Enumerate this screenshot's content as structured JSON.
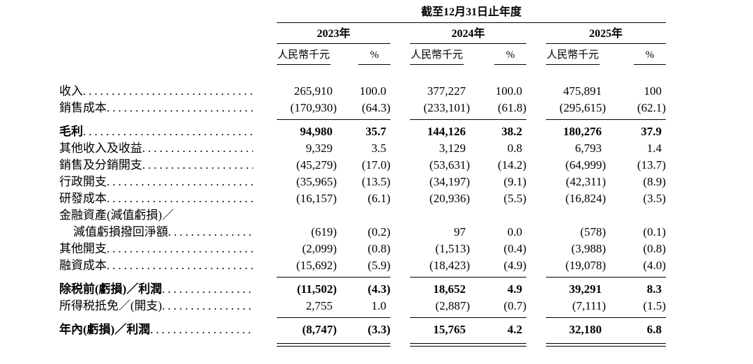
{
  "header": {
    "period": "截至12月31日止年度",
    "years": [
      "2023年",
      "2024年",
      "2025年"
    ],
    "amount_unit": "人民幣千元",
    "pct_symbol": "%"
  },
  "rows": [
    {
      "label": "收入",
      "dots": true,
      "bold": false,
      "values": [
        "265,910",
        "100.0",
        "377,227",
        "100.0",
        "475,891",
        "100"
      ]
    },
    {
      "label": "銷售成本",
      "dots": true,
      "bold": false,
      "values": [
        "(170,930)",
        "(64.3)",
        "(233,101)",
        "(61.8)",
        "(295,615)",
        "(62.1)"
      ]
    },
    {
      "type": "rule"
    },
    {
      "label": "毛利",
      "dots": true,
      "bold": true,
      "values": [
        "94,980",
        "35.7",
        "144,126",
        "38.2",
        "180,276",
        "37.9"
      ]
    },
    {
      "label": "其他收入及收益",
      "dots": true,
      "bold": false,
      "values": [
        "9,329",
        "3.5",
        "3,129",
        "0.8",
        "6,793",
        "1.4"
      ]
    },
    {
      "label": "銷售及分銷開支",
      "dots": true,
      "bold": false,
      "values": [
        "(45,279)",
        "(17.0)",
        "(53,631)",
        "(14.2)",
        "(64,999)",
        "(13.7)"
      ]
    },
    {
      "label": "行政開支",
      "dots": true,
      "bold": false,
      "values": [
        "(35,965)",
        "(13.5)",
        "(34,197)",
        "(9.1)",
        "(42,311)",
        "(8.9)"
      ]
    },
    {
      "label": "研發成本",
      "dots": true,
      "bold": false,
      "values": [
        "(16,157)",
        "(6.1)",
        "(20,936)",
        "(5.5)",
        "(16,824)",
        "(3.5)"
      ]
    },
    {
      "label": "金融資產(減值虧損)／",
      "dots": false,
      "bold": false
    },
    {
      "label": "減值虧損撥回淨額",
      "dots": true,
      "bold": false,
      "indent": true,
      "values": [
        "(619)",
        "(0.2)",
        "97",
        "0.0",
        "(578)",
        "(0.1)"
      ]
    },
    {
      "label": "其他開支",
      "dots": true,
      "bold": false,
      "values": [
        "(2,099)",
        "(0.8)",
        "(1,513)",
        "(0.4)",
        "(3,988)",
        "(0.8)"
      ]
    },
    {
      "label": "融資成本",
      "dots": true,
      "bold": false,
      "values": [
        "(15,692)",
        "(5.9)",
        "(18,423)",
        "(4.9)",
        "(19,078)",
        "(4.0)"
      ]
    },
    {
      "type": "rule"
    },
    {
      "label": "除税前(虧損)／利潤",
      "dots": true,
      "bold": true,
      "values": [
        "(11,502)",
        "(4.3)",
        "18,652",
        "4.9",
        "39,291",
        "8.3"
      ]
    },
    {
      "label": "所得税抵免／(開支)",
      "dots": true,
      "bold": false,
      "values": [
        "2,755",
        "1.0",
        "(2,887)",
        "(0.7)",
        "(7,111)",
        "(1.5)"
      ]
    },
    {
      "type": "rule"
    },
    {
      "label": "年內(虧損)／利潤",
      "dots": true,
      "bold": true,
      "values": [
        "(8,747)",
        "(3.3)",
        "15,765",
        "4.2",
        "32,180",
        "6.8"
      ]
    },
    {
      "type": "double-rule"
    }
  ]
}
